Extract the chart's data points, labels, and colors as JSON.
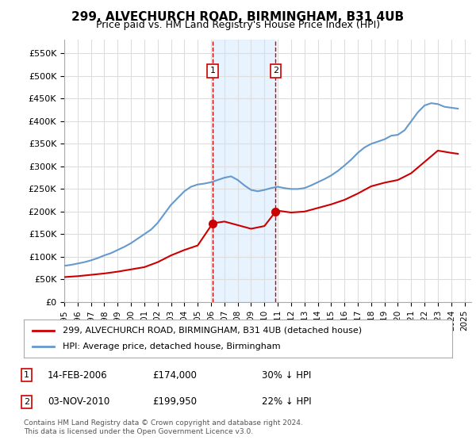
{
  "title": "299, ALVECHURCH ROAD, BIRMINGHAM, B31 4UB",
  "subtitle": "Price paid vs. HM Land Registry's House Price Index (HPI)",
  "ylabel_ticks": [
    "£0",
    "£50K",
    "£100K",
    "£150K",
    "£200K",
    "£250K",
    "£300K",
    "£350K",
    "£400K",
    "£450K",
    "£500K",
    "£550K"
  ],
  "ytick_values": [
    0,
    50000,
    100000,
    150000,
    200000,
    250000,
    300000,
    350000,
    400000,
    450000,
    500000,
    550000
  ],
  "ylim": [
    0,
    580000
  ],
  "xlim_start": 1995.0,
  "xlim_end": 2025.5,
  "purchase1_date": 2006.12,
  "purchase1_price": 174000,
  "purchase1_label": "1",
  "purchase2_date": 2010.84,
  "purchase2_price": 199950,
  "purchase2_label": "2",
  "legend_line1": "299, ALVECHURCH ROAD, BIRMINGHAM, B31 4UB (detached house)",
  "legend_line2": "HPI: Average price, detached house, Birmingham",
  "annotation1_date": "14-FEB-2006",
  "annotation1_price": "£174,000",
  "annotation1_hpi": "30% ↓ HPI",
  "annotation2_date": "03-NOV-2010",
  "annotation2_price": "£199,950",
  "annotation2_hpi": "22% ↓ HPI",
  "footer": "Contains HM Land Registry data © Crown copyright and database right 2024.\nThis data is licensed under the Open Government Licence v3.0.",
  "line_red": "#cc0000",
  "line_blue": "#6699cc",
  "shade_color": "#ddeeff",
  "vline_color": "#cc0000",
  "background_color": "#ffffff",
  "grid_color": "#dddddd"
}
